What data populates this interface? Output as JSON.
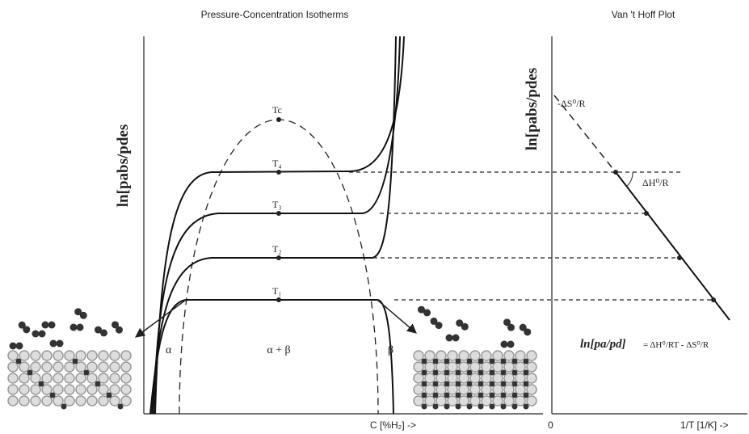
{
  "left_panel": {
    "title": "Pressure-Concentration Isotherms",
    "y_label": "ln[pabs/pdes",
    "x_label": "C [%H₂] ->",
    "isotherms": [
      "T₁",
      "T₂",
      "T₃",
      "T₄"
    ],
    "critical": "Tc",
    "regions": [
      "α",
      "α + β",
      "β"
    ]
  },
  "right_panel": {
    "title": "Van 't Hoff Plot",
    "y_label": "ln[pabs/pdes",
    "x_label": "1/T  [1/K] ->",
    "origin": "0",
    "intercept_label": "-ΔS⁰/R",
    "slope_label": "ΔH⁰/R",
    "equation": {
      "lhs": "ln[pa/pd]",
      "rhs": "= ΔH⁰/RT - ΔS⁰/R"
    }
  }
}
